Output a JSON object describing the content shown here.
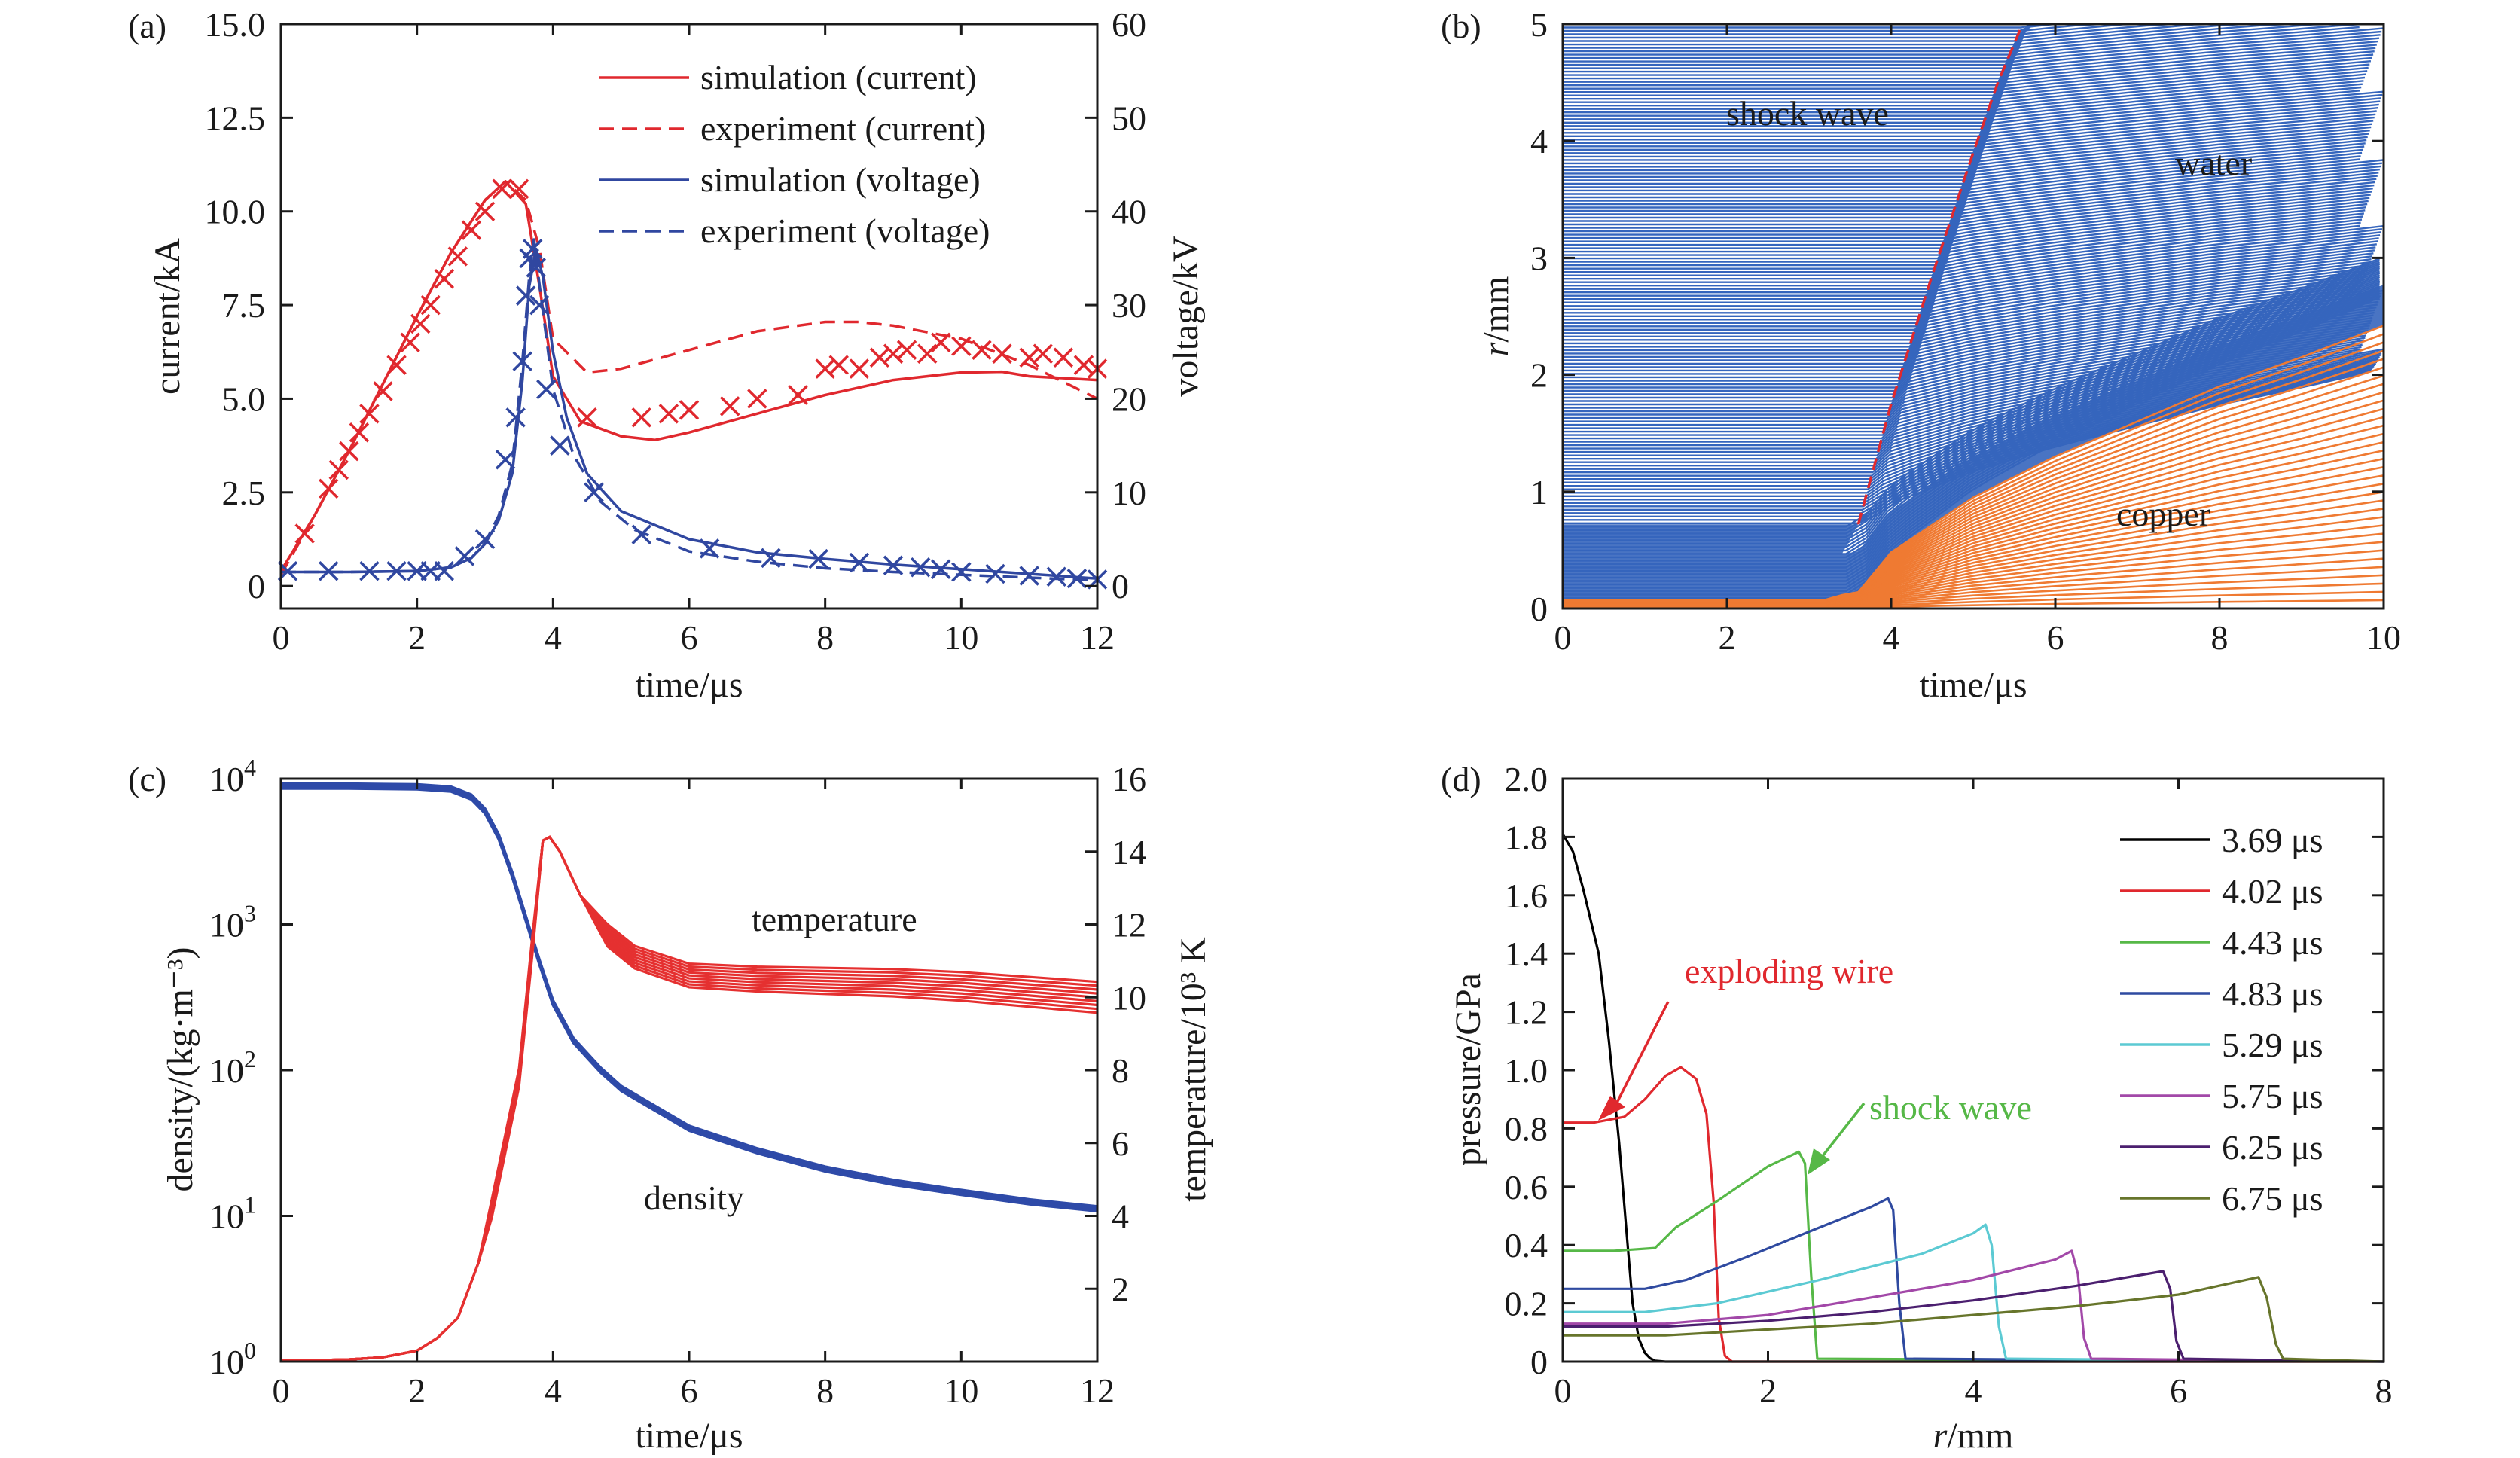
{
  "chart_data": [
    {
      "panel": "(a)",
      "type": "line",
      "xlabel": "time/μs",
      "ylabel": "current/kA",
      "y2label": "voltage/kV",
      "xlim": [
        0,
        12
      ],
      "ylim": [
        -0.6,
        15
      ],
      "y2lim": [
        -2.4,
        60
      ],
      "xticks": [
        "0",
        "2",
        "4",
        "6",
        "8",
        "10",
        "12"
      ],
      "yticks": [
        "0",
        "2.5",
        "5.0",
        "7.5",
        "10.0",
        "12.5",
        "15.0"
      ],
      "y2ticks": [
        "0",
        "10",
        "20",
        "30",
        "40",
        "50",
        "60"
      ],
      "legend": [
        {
          "label": "simulation (current)",
          "color": "#e0282e",
          "dash": "solid"
        },
        {
          "label": "experiment (current)",
          "color": "#e0282e",
          "dash": "dashed"
        },
        {
          "label": "simulation (voltage)",
          "color": "#3047a0",
          "dash": "solid"
        },
        {
          "label": "experiment (voltage)",
          "color": "#3047a0",
          "dash": "dashed"
        }
      ],
      "series": [
        {
          "axis": "left",
          "color": "#e0282e",
          "style": "solid",
          "x": [
            0,
            0.5,
            1,
            1.5,
            2,
            2.5,
            3,
            3.3,
            3.6,
            3.8,
            4,
            4.4,
            5,
            5.5,
            6,
            7,
            8,
            9,
            10,
            10.6,
            11,
            12
          ],
          "y": [
            0.4,
            1.9,
            3.6,
            5.4,
            7.2,
            8.9,
            10.3,
            10.8,
            10.2,
            8.0,
            5.6,
            4.4,
            4.0,
            3.9,
            4.1,
            4.6,
            5.1,
            5.5,
            5.7,
            5.72,
            5.6,
            5.5
          ]
        },
        {
          "axis": "left",
          "color": "#e0282e",
          "style": "dashed",
          "x": [
            0,
            0.5,
            1,
            1.5,
            2,
            2.5,
            3,
            3.3,
            3.6,
            3.8,
            4,
            4.5,
            5,
            6,
            7,
            8,
            8.5,
            9,
            10,
            11,
            12
          ],
          "y": [
            0.3,
            1.9,
            3.6,
            5.4,
            7.2,
            8.9,
            10.3,
            10.8,
            10.3,
            9.0,
            6.6,
            5.7,
            5.8,
            6.3,
            6.8,
            7.05,
            7.05,
            6.95,
            6.6,
            5.9,
            5.0
          ]
        },
        {
          "axis": "left",
          "color": "#e0282e",
          "style": "marker",
          "x": [
            0.35,
            0.7,
            0.85,
            1.0,
            1.15,
            1.3,
            1.5,
            1.7,
            1.9,
            2.05,
            2.2,
            2.4,
            2.6,
            2.8,
            3.0,
            3.25,
            3.5,
            4.5,
            5.3,
            5.7,
            6.0,
            6.6,
            7.0,
            7.6,
            8.0,
            8.2,
            8.5,
            8.8,
            9.0,
            9.2,
            9.5,
            9.7,
            10.0,
            10.3,
            10.6,
            11.0,
            11.2,
            11.5,
            11.8,
            12.0
          ],
          "y": [
            1.4,
            2.6,
            3.1,
            3.6,
            4.1,
            4.6,
            5.2,
            5.9,
            6.5,
            7.0,
            7.5,
            8.2,
            8.8,
            9.5,
            10.0,
            10.6,
            10.6,
            4.5,
            4.5,
            4.6,
            4.7,
            4.8,
            5.0,
            5.1,
            5.8,
            5.9,
            5.8,
            6.1,
            6.2,
            6.3,
            6.2,
            6.5,
            6.4,
            6.3,
            6.2,
            6.1,
            6.2,
            6.1,
            5.9,
            5.8
          ]
        },
        {
          "axis": "right",
          "color": "#3047a0",
          "style": "solid",
          "x": [
            0,
            1,
            2,
            2.5,
            2.8,
            3.0,
            3.2,
            3.4,
            3.55,
            3.65,
            3.75,
            3.85,
            4.0,
            4.2,
            4.5,
            5.0,
            6.0,
            7.0,
            8.0,
            9.0,
            10.0,
            11.0,
            12.0
          ],
          "y": [
            1.5,
            1.5,
            1.6,
            2.0,
            3.0,
            4.5,
            7.0,
            12.0,
            22.0,
            32.0,
            36.0,
            33.0,
            25.0,
            18.0,
            12.0,
            8.0,
            5.0,
            3.6,
            2.9,
            2.3,
            1.8,
            1.3,
            0.8
          ]
        },
        {
          "axis": "right",
          "color": "#3047a0",
          "style": "dashed",
          "x": [
            0,
            1,
            2,
            2.5,
            2.8,
            3.0,
            3.2,
            3.4,
            3.55,
            3.65,
            3.72,
            3.82,
            4.0,
            4.3,
            4.7,
            5.2,
            6.0,
            7.0,
            8.0,
            9.0,
            10.0,
            11.0,
            12.0
          ],
          "y": [
            1.5,
            1.5,
            1.6,
            2.0,
            3.0,
            4.6,
            7.5,
            13.0,
            24.0,
            33.0,
            37.0,
            31.0,
            21.0,
            14.0,
            9.0,
            6.0,
            3.7,
            2.6,
            1.9,
            1.5,
            1.2,
            0.9,
            0.6
          ]
        },
        {
          "axis": "right",
          "color": "#3047a0",
          "style": "marker",
          "x": [
            0.1,
            0.7,
            1.3,
            1.7,
            2.0,
            2.2,
            2.4,
            2.7,
            3.0,
            3.3,
            3.45,
            3.55,
            3.6,
            3.65,
            3.7,
            3.75,
            3.8,
            3.9,
            4.1,
            4.6,
            5.3,
            6.3,
            7.2,
            7.9,
            8.5,
            9.0,
            9.4,
            9.7,
            10.0,
            10.5,
            11.0,
            11.4,
            11.7,
            12.0
          ],
          "y": [
            1.6,
            1.6,
            1.6,
            1.6,
            1.6,
            1.6,
            1.6,
            3.2,
            5.0,
            13.5,
            18.0,
            24.0,
            31.0,
            35.0,
            36.0,
            34.0,
            30.0,
            21.0,
            15.0,
            10.0,
            5.5,
            4.0,
            3.0,
            2.9,
            2.5,
            2.2,
            2.0,
            1.8,
            1.5,
            1.3,
            1.1,
            1.0,
            0.8,
            0.7
          ]
        }
      ]
    },
    {
      "panel": "(b)",
      "type": "line",
      "xlabel": "time/μs",
      "ylabel": "r/mm",
      "xlim": [
        0,
        10
      ],
      "ylim": [
        0,
        5
      ],
      "xticks": [
        "0",
        "2",
        "4",
        "6",
        "8",
        "10"
      ],
      "yticks": [
        "0",
        "1",
        "2",
        "3",
        "4",
        "5"
      ],
      "annotations": [
        "shock wave",
        "water",
        "copper"
      ],
      "water_color": "#3565bd",
      "copper_color": "#ef7a32",
      "shock_color": "#e0282e",
      "interface": {
        "x": [
          0,
          3.2,
          3.6,
          4.0,
          5,
          6,
          7,
          8,
          9,
          10
        ],
        "y": [
          0.07,
          0.09,
          0.14,
          0.48,
          0.95,
          1.3,
          1.6,
          1.9,
          2.15,
          2.42
        ]
      },
      "shock_front": {
        "x": [
          3.6,
          4.0,
          4.5,
          5.0,
          5.3,
          5.6
        ],
        "y": [
          0.72,
          1.75,
          2.85,
          3.9,
          4.5,
          5.0
        ]
      }
    },
    {
      "panel": "(c)",
      "type": "line",
      "xlabel": "time/μs",
      "ylabel": "density/(kg·m⁻³)",
      "y2label": "temperature/10³ K",
      "xlim": [
        0,
        12
      ],
      "ylim": [
        1,
        10000
      ],
      "yscale": "log",
      "y2lim": [
        0,
        16
      ],
      "xticks": [
        "0",
        "2",
        "4",
        "6",
        "8",
        "10",
        "12"
      ],
      "yticks_base": "10",
      "yticks_exp": [
        "0",
        "1",
        "2",
        "3",
        "4"
      ],
      "y2ticks": [
        "2",
        "4",
        "6",
        "8",
        "10",
        "12",
        "14",
        "16"
      ],
      "annotations": [
        "temperature",
        "density"
      ],
      "series": [
        {
          "axis": "left",
          "color": "#2e4aa8",
          "x": [
            0,
            1,
            2,
            2.5,
            2.8,
            3.0,
            3.2,
            3.4,
            3.6,
            3.8,
            4.0,
            4.3,
            4.7,
            5,
            6,
            7,
            8,
            9,
            10,
            11,
            12
          ],
          "y": [
            8900,
            8900,
            8800,
            8500,
            7500,
            6000,
            4000,
            2200,
            1100,
            550,
            290,
            160,
            100,
            75,
            40,
            28,
            21,
            17,
            14.5,
            12.5,
            11.2
          ]
        },
        {
          "axis": "right",
          "color": "#e53030",
          "x": [
            0,
            1,
            1.5,
            2.0,
            2.3,
            2.6,
            2.9,
            3.1,
            3.3,
            3.5,
            3.7,
            3.85,
            3.95,
            4.1,
            4.4,
            4.8,
            5.2,
            6,
            7,
            8,
            9,
            10,
            11,
            12
          ],
          "y": [
            0.02,
            0.06,
            0.12,
            0.3,
            0.65,
            1.2,
            2.7,
            4.2,
            6.0,
            7.8,
            11.5,
            14.3,
            14.4,
            14.0,
            12.8,
            11.7,
            11.1,
            10.6,
            10.5,
            10.45,
            10.4,
            10.3,
            10.15,
            10.0
          ]
        }
      ]
    },
    {
      "panel": "(d)",
      "type": "line",
      "xlabel": "r/mm",
      "ylabel": "pressure/GPa",
      "xlim": [
        0,
        8
      ],
      "ylim": [
        0,
        2.0
      ],
      "xticks": [
        "0",
        "2",
        "4",
        "6",
        "8"
      ],
      "yticks": [
        "0",
        "0.2",
        "0.4",
        "0.6",
        "0.8",
        "1.0",
        "1.2",
        "1.4",
        "1.6",
        "1.8",
        "2.0"
      ],
      "annotations": [
        {
          "text": "exploding wire",
          "color": "#e0282e"
        },
        {
          "text": "shock wave",
          "color": "#56b847"
        }
      ],
      "series": [
        {
          "name": "3.69 μs",
          "color": "#000000",
          "x": [
            0,
            0.1,
            0.2,
            0.35,
            0.45,
            0.55,
            0.62,
            0.68,
            0.74,
            0.8,
            0.85,
            0.9,
            1.0,
            8
          ],
          "y": [
            1.81,
            1.75,
            1.62,
            1.4,
            1.1,
            0.75,
            0.45,
            0.2,
            0.08,
            0.03,
            0.012,
            0.003,
            0,
            0
          ]
        },
        {
          "name": "4.02 μs",
          "color": "#e0282e",
          "x": [
            0,
            0.3,
            0.6,
            0.8,
            1.0,
            1.15,
            1.3,
            1.4,
            1.47,
            1.52,
            1.58,
            1.65,
            8
          ],
          "y": [
            0.82,
            0.82,
            0.84,
            0.9,
            0.98,
            1.01,
            0.97,
            0.85,
            0.55,
            0.15,
            0.02,
            0,
            0
          ]
        },
        {
          "name": "4.43 μs",
          "color": "#56b847",
          "x": [
            0,
            0.5,
            0.9,
            1.1,
            1.5,
            2.0,
            2.3,
            2.36,
            2.42,
            2.48,
            8
          ],
          "y": [
            0.38,
            0.38,
            0.39,
            0.46,
            0.55,
            0.67,
            0.72,
            0.68,
            0.3,
            0.01,
            0
          ]
        },
        {
          "name": "4.83 μs",
          "color": "#2f4aa0",
          "x": [
            0,
            0.8,
            1.2,
            1.8,
            2.5,
            3.0,
            3.17,
            3.22,
            3.28,
            3.34,
            8
          ],
          "y": [
            0.25,
            0.25,
            0.28,
            0.36,
            0.46,
            0.53,
            0.56,
            0.52,
            0.2,
            0.01,
            0
          ]
        },
        {
          "name": "5.29 μs",
          "color": "#5ccad3",
          "x": [
            0,
            0.8,
            1.5,
            2.5,
            3.5,
            4.0,
            4.12,
            4.18,
            4.25,
            4.32,
            8
          ],
          "y": [
            0.17,
            0.17,
            0.2,
            0.28,
            0.37,
            0.44,
            0.47,
            0.4,
            0.12,
            0.01,
            0
          ]
        },
        {
          "name": "5.75 μs",
          "color": "#a248a8",
          "x": [
            0,
            1.0,
            2.0,
            3.0,
            4.0,
            4.8,
            4.96,
            5.02,
            5.08,
            5.15,
            8
          ],
          "y": [
            0.13,
            0.13,
            0.16,
            0.22,
            0.28,
            0.35,
            0.38,
            0.3,
            0.08,
            0.01,
            0
          ]
        },
        {
          "name": "6.25 μs",
          "color": "#4b1f6f",
          "x": [
            0,
            1.0,
            2.0,
            3.0,
            4.0,
            5.0,
            5.85,
            5.92,
            5.98,
            6.05,
            8
          ],
          "y": [
            0.12,
            0.12,
            0.14,
            0.17,
            0.21,
            0.26,
            0.31,
            0.25,
            0.07,
            0.01,
            0
          ]
        },
        {
          "name": "6.75 μs",
          "color": "#67752b",
          "x": [
            0,
            1.0,
            2.0,
            3.0,
            4.0,
            5.0,
            6.0,
            6.78,
            6.86,
            6.95,
            7.02,
            8
          ],
          "y": [
            0.09,
            0.09,
            0.11,
            0.13,
            0.16,
            0.19,
            0.23,
            0.29,
            0.22,
            0.06,
            0.01,
            0
          ]
        }
      ]
    }
  ]
}
